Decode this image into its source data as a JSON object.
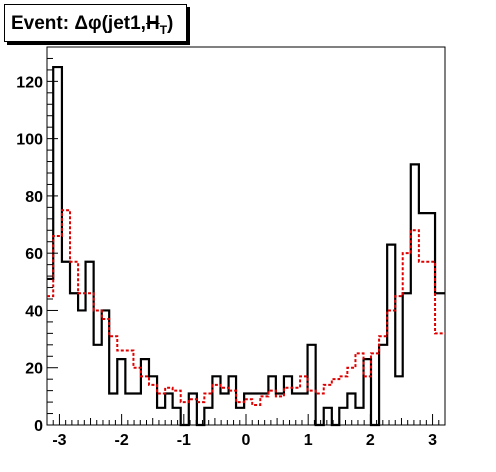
{
  "chart_data": {
    "type": "histogram",
    "title_prefix": "Event: ",
    "title_main": "Δφ(jet1,",
    "title_met": "H",
    "title_sub": "T",
    "title_suffix": ")",
    "xlim": [
      -3.2,
      3.2
    ],
    "ylim": [
      0,
      132
    ],
    "grid": false,
    "x_ticks": [
      -3,
      -2,
      -1,
      0,
      1,
      2,
      3
    ],
    "x_tick_labels": [
      "-3",
      "-2",
      "-1",
      "0",
      "1",
      "2",
      "3"
    ],
    "y_ticks": [
      0,
      20,
      40,
      60,
      80,
      100,
      120
    ],
    "y_tick_labels": [
      "0",
      "20",
      "40",
      "60",
      "80",
      "100",
      "120"
    ],
    "bin_edges": [
      -3.2,
      -3.1,
      -2.96,
      -2.83,
      -2.7,
      -2.58,
      -2.45,
      -2.32,
      -2.2,
      -2.07,
      -1.94,
      -1.81,
      -1.69,
      -1.56,
      -1.43,
      -1.3,
      -1.18,
      -1.05,
      -0.92,
      -0.79,
      -0.67,
      -0.54,
      -0.41,
      -0.28,
      -0.16,
      -0.03,
      0.1,
      0.23,
      0.36,
      0.48,
      0.61,
      0.74,
      0.87,
      0.99,
      1.12,
      1.25,
      1.38,
      1.5,
      1.63,
      1.76,
      1.89,
      2.01,
      2.14,
      2.27,
      2.4,
      2.52,
      2.65,
      2.78,
      2.91,
      3.04,
      3.2
    ],
    "series": [
      {
        "style": "solid-black",
        "values": [
          51,
          125,
          57,
          46,
          40,
          57,
          28,
          40,
          11,
          23,
          11,
          11,
          23,
          17,
          6,
          11,
          6,
          0,
          11,
          0,
          6,
          17,
          11,
          17,
          6,
          11,
          11,
          11,
          17,
          11,
          17,
          11,
          11,
          28,
          0,
          6,
          0,
          6,
          11,
          6,
          23,
          0,
          28,
          63,
          17,
          46,
          91,
          74,
          74,
          46
        ]
      },
      {
        "style": "dashed-red",
        "values": [
          45,
          66,
          75,
          57,
          46,
          46,
          40,
          37,
          31,
          26,
          26,
          20,
          17,
          14,
          11,
          13,
          12,
          8,
          9,
          8,
          11,
          14,
          13,
          12,
          8,
          9,
          7,
          10,
          12,
          10,
          13,
          13,
          17,
          12,
          11,
          14,
          16,
          17,
          20,
          25,
          17,
          25,
          31,
          40,
          45,
          60,
          68,
          57,
          57,
          32
        ]
      }
    ]
  }
}
